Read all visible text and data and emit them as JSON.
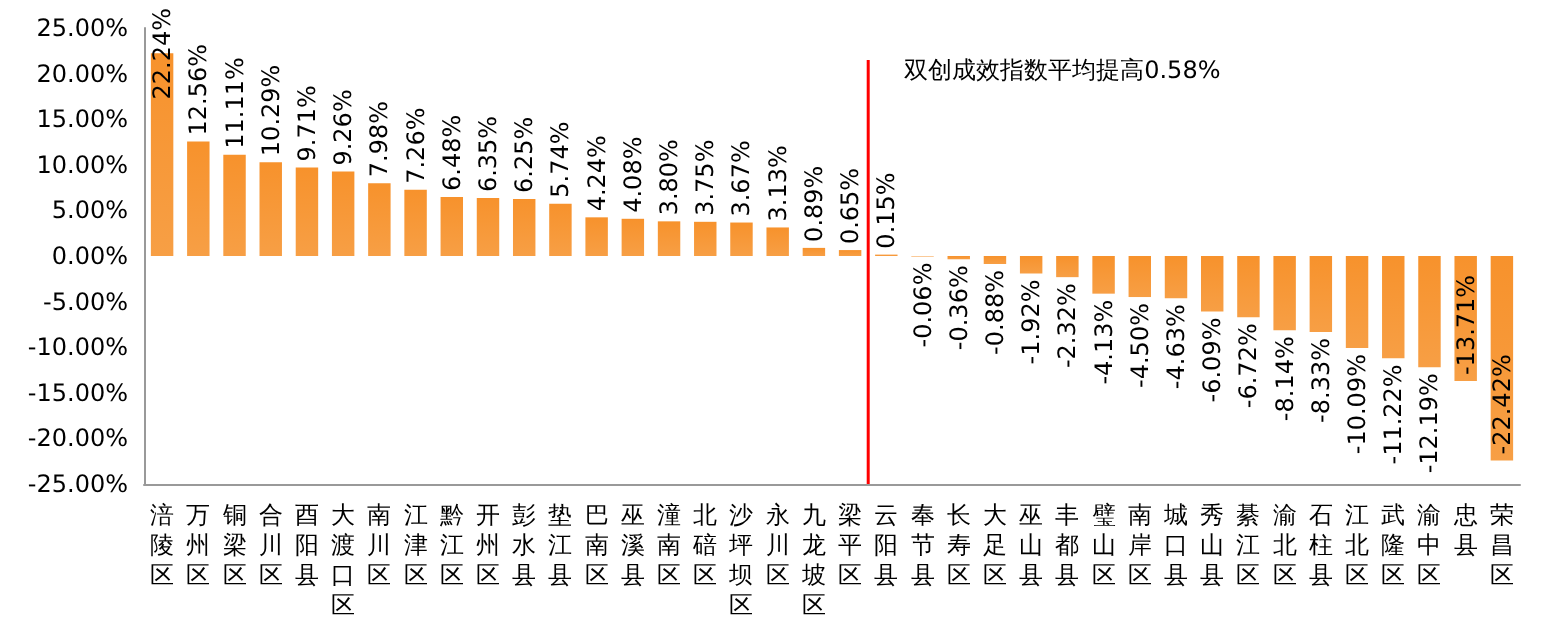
{
  "chart_data": {
    "type": "bar",
    "categories": [
      "涪陵区",
      "万州区",
      "铜梁区",
      "合川区",
      "酉阳县",
      "大渡口区",
      "南川区",
      "江津区",
      "黔江区",
      "开州区",
      "彭水县",
      "垫江县",
      "巴南区",
      "巫溪县",
      "潼南区",
      "北碚区",
      "沙坪坝区",
      "永川区",
      "九龙坡区",
      "梁平区",
      "云阳县",
      "奉节县",
      "长寿区",
      "大足区",
      "巫山县",
      "丰都县",
      "璧山区",
      "南岸区",
      "城口县",
      "秀山县",
      "綦江区",
      "渝北区",
      "石柱县",
      "江北区",
      "武隆区",
      "渝中区",
      "忠县",
      "荣昌区"
    ],
    "values": [
      22.24,
      12.56,
      11.11,
      10.29,
      9.71,
      9.26,
      7.98,
      7.26,
      6.48,
      6.35,
      6.25,
      5.74,
      4.24,
      4.08,
      3.8,
      3.75,
      3.67,
      3.13,
      0.89,
      0.65,
      0.15,
      -0.06,
      -0.36,
      -0.88,
      -1.92,
      -2.32,
      -4.13,
      -4.5,
      -4.63,
      -6.09,
      -6.72,
      -8.14,
      -8.33,
      -10.09,
      -11.22,
      -12.19,
      -13.71,
      -22.42
    ],
    "value_labels": [
      "22.24%",
      "12.56%",
      "11.11%",
      "10.29%",
      "9.71%",
      "9.26%",
      "7.98%",
      "7.26%",
      "6.48%",
      "6.35%",
      "6.25%",
      "5.74%",
      "4.24%",
      "4.08%",
      "3.80%",
      "3.75%",
      "3.67%",
      "3.13%",
      "0.89%",
      "0.65%",
      "0.15%",
      "-0.06%",
      "-0.36%",
      "-0.88%",
      "-1.92%",
      "-2.32%",
      "-4.13%",
      "-4.50%",
      "-4.63%",
      "-6.09%",
      "-6.72%",
      "-8.14%",
      "-8.33%",
      "-10.09%",
      "-11.22%",
      "-12.19%",
      "-13.71%",
      "-22.42%"
    ],
    "color": "#f7922c",
    "ylim": [
      -25,
      25
    ],
    "yticks": [
      {
        "value": -25,
        "label": "-25.00%"
      },
      {
        "value": -20,
        "label": "-20.00%"
      },
      {
        "value": -15,
        "label": "-15.00%"
      },
      {
        "value": -10,
        "label": "-10.00%"
      },
      {
        "value": -5,
        "label": "-5.00%"
      },
      {
        "value": 0,
        "label": "0.00%"
      },
      {
        "value": 5,
        "label": "5.00%"
      },
      {
        "value": 10,
        "label": "10.00%"
      },
      {
        "value": 15,
        "label": "15.00%"
      },
      {
        "value": 20,
        "label": "20.00%"
      },
      {
        "value": 25,
        "label": "25.00%"
      }
    ],
    "ref_lines": [
      {
        "axis": "x",
        "value": "云阳县",
        "label": "双创成效指数平均提高0.58%",
        "color": "#ff0000"
      }
    ],
    "grid": false
  }
}
